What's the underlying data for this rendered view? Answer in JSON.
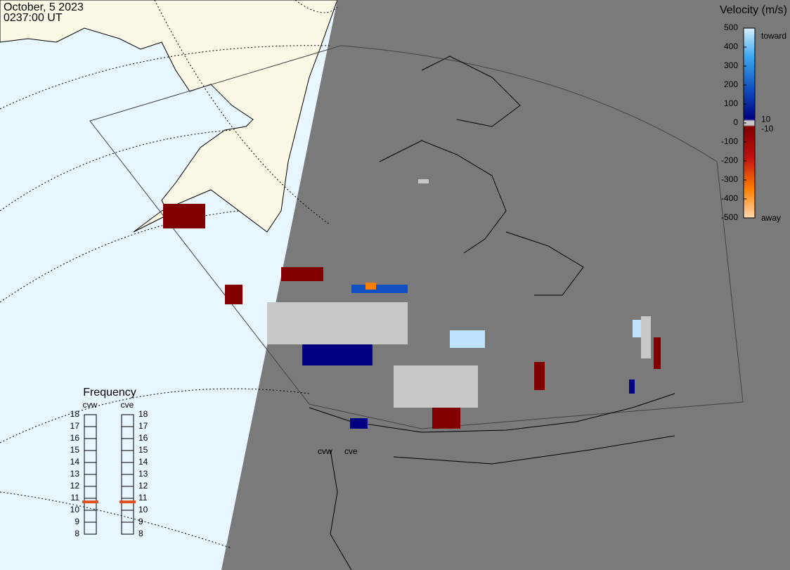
{
  "header": {
    "date": "October, 5 2023",
    "time": "0237:00 UT"
  },
  "velocity_scale": {
    "title": "Velocity (m/s)",
    "ylim": [
      -500,
      500
    ],
    "ticks": [
      500,
      400,
      300,
      200,
      100,
      0,
      -100,
      -200,
      -300,
      -400,
      -500
    ],
    "near_zero_ticks": [
      10,
      -10
    ],
    "top_label": "toward",
    "bottom_label": "away"
  },
  "frequency": {
    "title": "Frequency",
    "ylim": [
      8,
      18
    ],
    "ticks": [
      8,
      9,
      10,
      11,
      12,
      13,
      14,
      15,
      16,
      17,
      18
    ],
    "radars": [
      {
        "name": "cvw",
        "value": 10.7,
        "color": "#e0501a"
      },
      {
        "name": "cve",
        "value": 10.7,
        "color": "#e0501a"
      }
    ]
  },
  "radar_labels": [
    "cvw",
    "cve"
  ]
}
